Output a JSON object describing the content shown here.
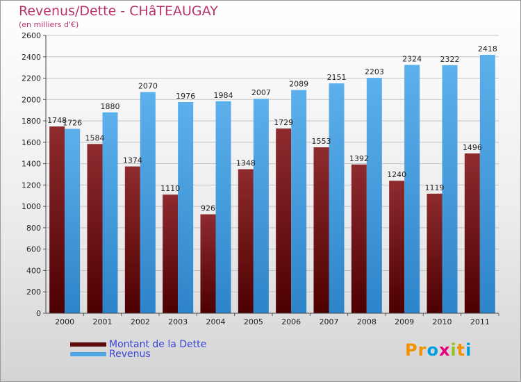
{
  "title": "Revenus/Dette - CHâTEAUGAY",
  "subtitle": "(en milliers d'€)",
  "logo": {
    "text": "Proxiti",
    "letter_colors": [
      "#f39200",
      "#f39200",
      "#009fe3",
      "#e6007e",
      "#95c11f",
      "#f39200",
      "#009fe3"
    ]
  },
  "chart_data": {
    "type": "bar",
    "title": "Revenus/Dette - CHâTEAUGAY",
    "ylabel": "(en milliers d'€)",
    "xlabel": "",
    "categories": [
      "2000",
      "2001",
      "2002",
      "2003",
      "2004",
      "2005",
      "2006",
      "2007",
      "2008",
      "2009",
      "2010",
      "2011"
    ],
    "series": [
      {
        "name": "Montant de la Dette",
        "color": "#7a1a1a",
        "values": [
          1748,
          1584,
          1374,
          1110,
          926,
          1348,
          1729,
          1553,
          1392,
          1240,
          1119,
          1496
        ]
      },
      {
        "name": "Revenus",
        "color": "#4ea6e6",
        "values": [
          1726,
          1880,
          2070,
          1976,
          1984,
          2007,
          2089,
          2151,
          2203,
          2324,
          2322,
          2418
        ]
      }
    ],
    "ylim": [
      0,
      2600
    ],
    "yticks": [
      0,
      200,
      400,
      600,
      800,
      1000,
      1200,
      1400,
      1600,
      1800,
      2000,
      2200,
      2400,
      2600
    ],
    "grid": true,
    "legend_position": "bottom-left"
  }
}
